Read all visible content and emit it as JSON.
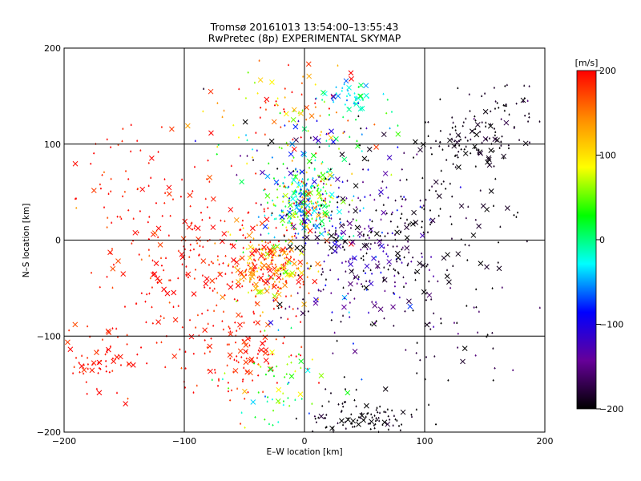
{
  "chart_data": {
    "type": "scatter",
    "title": "Tromsø 20161013 13:54:00–13:55:43",
    "subtitle": "RwPretec (8p) EXPERIMENTAL SKYMAP",
    "xlabel": "E–W location [km]",
    "ylabel": "N–S location [km]",
    "xlim": [
      -200,
      200
    ],
    "ylim": [
      -200,
      200
    ],
    "xticks": [
      "−200",
      "−100",
      "0",
      "100",
      "200"
    ],
    "yticks": [
      "−200",
      "−100",
      "0",
      "100",
      "200"
    ],
    "grid": true,
    "colorbar": {
      "label": "[m/s]",
      "range": [
        -200,
        200
      ],
      "ticks": [
        "200",
        "100",
        "0",
        "−100",
        "−200"
      ],
      "colors": [
        "#ff0000",
        "#ff8c00",
        "#ffff00",
        "#00ff00",
        "#00ffff",
        "#0000ff",
        "#660099",
        "#000000"
      ]
    },
    "clusters": [
      {
        "x": 0,
        "y": 40,
        "sx": 15,
        "sy": 18,
        "n": 320,
        "v": 0,
        "sv": 70
      },
      {
        "x": -30,
        "y": -30,
        "sx": 20,
        "sy": 20,
        "n": 260,
        "v": 150,
        "sv": 55
      },
      {
        "x": -90,
        "y": -20,
        "sx": 50,
        "sy": 50,
        "n": 260,
        "v": 195,
        "sv": 15
      },
      {
        "x": 45,
        "y": -10,
        "sx": 35,
        "sy": 40,
        "n": 300,
        "v": -160,
        "sv": 45
      },
      {
        "x": 100,
        "y": 10,
        "sx": 45,
        "sy": 40,
        "n": 130,
        "v": -195,
        "sv": 10
      },
      {
        "x": 140,
        "y": 100,
        "sx": 20,
        "sy": 12,
        "n": 90,
        "v": -195,
        "sv": 10
      },
      {
        "x": 160,
        "y": 135,
        "sx": 25,
        "sy": 15,
        "n": 50,
        "v": -190,
        "sv": 15
      },
      {
        "x": 45,
        "y": -185,
        "sx": 25,
        "sy": 12,
        "n": 120,
        "v": -195,
        "sv": 10
      },
      {
        "x": -55,
        "y": -120,
        "sx": 25,
        "sy": 25,
        "n": 110,
        "v": 195,
        "sv": 15
      },
      {
        "x": -170,
        "y": -120,
        "sx": 15,
        "sy": 20,
        "n": 60,
        "v": 195,
        "sv": 10
      },
      {
        "x": 40,
        "y": 150,
        "sx": 12,
        "sy": 8,
        "n": 45,
        "v": -20,
        "sv": 20
      },
      {
        "x": -20,
        "y": 140,
        "sx": 25,
        "sy": 25,
        "n": 70,
        "v": 150,
        "sv": 60
      },
      {
        "x": -20,
        "y": -150,
        "sx": 20,
        "sy": 25,
        "n": 60,
        "v": 20,
        "sv": 40
      },
      {
        "x": 120,
        "y": -100,
        "sx": 30,
        "sy": 30,
        "n": 40,
        "v": -180,
        "sv": 30
      },
      {
        "x": -150,
        "y": 50,
        "sx": 30,
        "sy": 40,
        "n": 40,
        "v": 190,
        "sv": 20
      },
      {
        "x": 0,
        "y": 100,
        "sx": 40,
        "sy": 25,
        "n": 90,
        "v": -60,
        "sv": 110
      }
    ]
  }
}
